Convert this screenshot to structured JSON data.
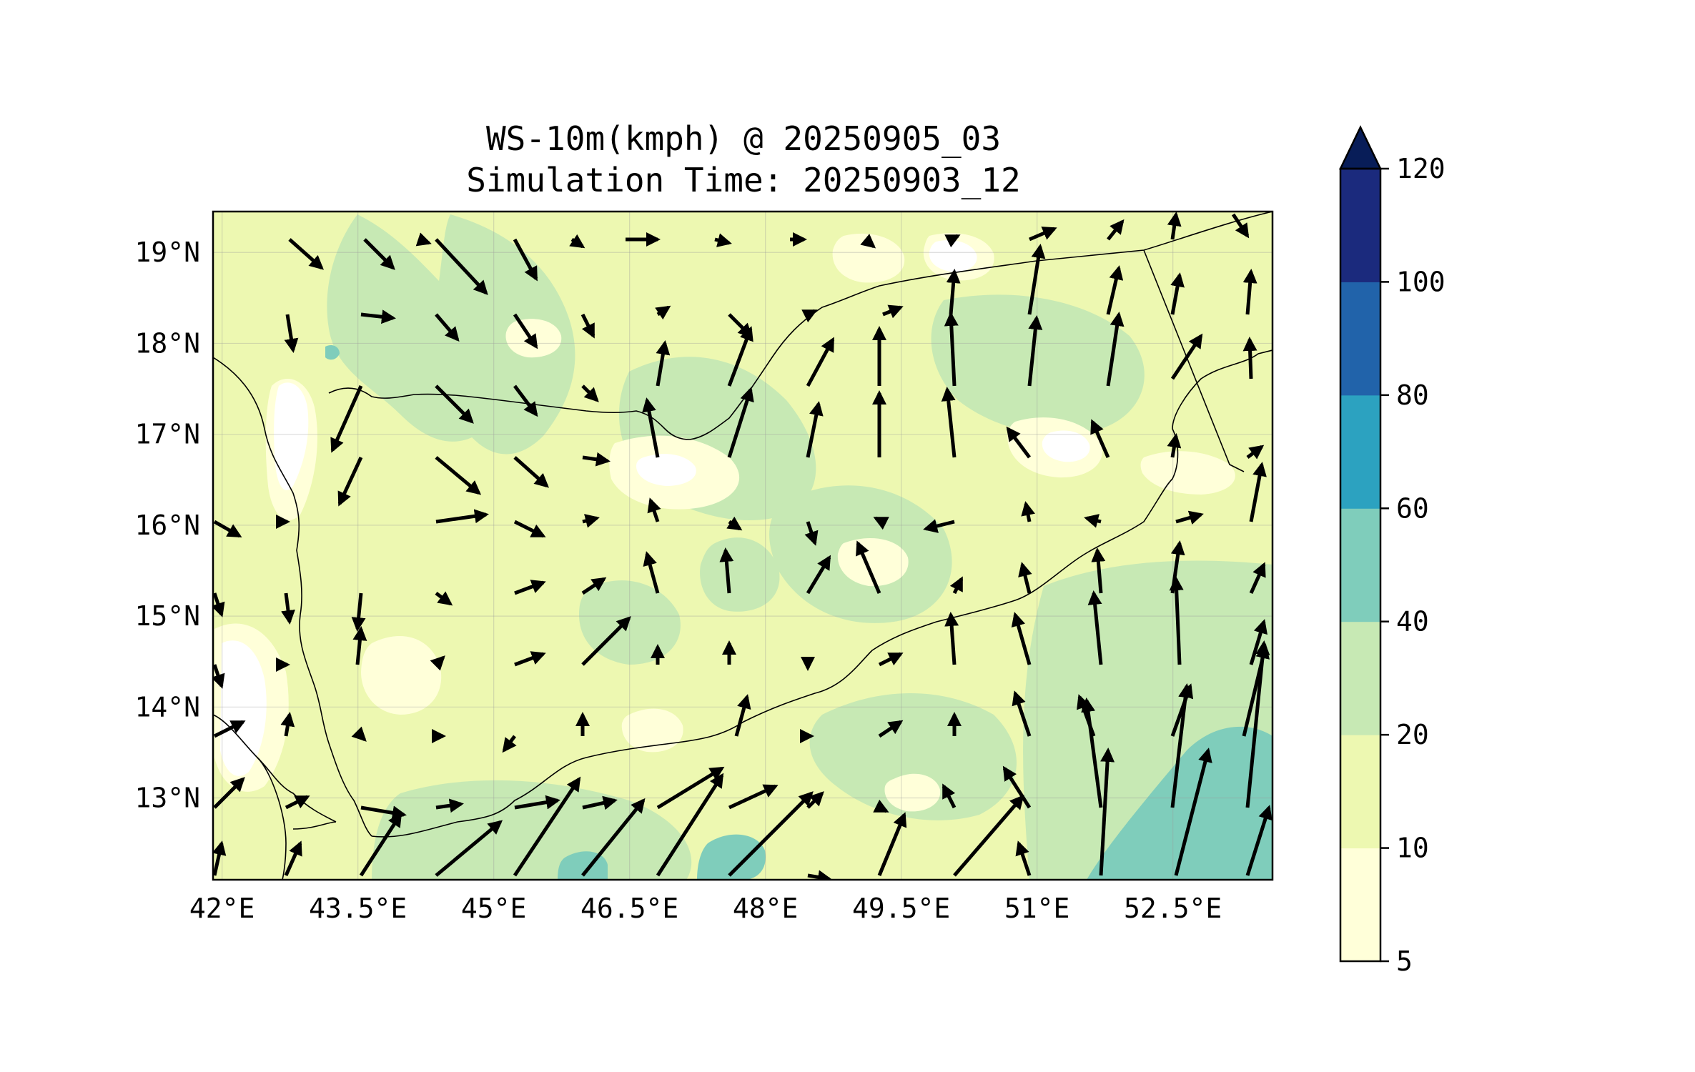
{
  "title_line1": "WS-10m(kmph) @ 20250905_03",
  "title_line2": "Simulation Time: 20250903_12",
  "map": {
    "lon_range": [
      41.9,
      53.6
    ],
    "lat_range": [
      12.1,
      19.45
    ],
    "x_ticks": [
      {
        "value": 42.0,
        "label": "42°E"
      },
      {
        "value": 43.5,
        "label": "43.5°E"
      },
      {
        "value": 45.0,
        "label": "45°E"
      },
      {
        "value": 46.5,
        "label": "46.5°E"
      },
      {
        "value": 48.0,
        "label": "48°E"
      },
      {
        "value": 49.5,
        "label": "49.5°E"
      },
      {
        "value": 51.0,
        "label": "51°E"
      },
      {
        "value": 52.5,
        "label": "52.5°E"
      }
    ],
    "y_ticks": [
      {
        "value": 19,
        "label": "19°N"
      },
      {
        "value": 18,
        "label": "18°N"
      },
      {
        "value": 17,
        "label": "17°N"
      },
      {
        "value": 16,
        "label": "16°N"
      },
      {
        "value": 15,
        "label": "15°N"
      },
      {
        "value": 14,
        "label": "14°N"
      },
      {
        "value": 13,
        "label": "13°N"
      }
    ],
    "gridlines": true,
    "wind_vector_color": "#000000",
    "coastline_color": "#000000"
  },
  "colorbar": {
    "levels": [
      5,
      10,
      20,
      40,
      60,
      80,
      100,
      120
    ],
    "labels": [
      "5",
      "10",
      "20",
      "40",
      "60",
      "80",
      "100",
      "120"
    ],
    "colors": [
      "#ffffd9",
      "#edf8b1",
      "#c7e9b4",
      "#7fcdbb",
      "#2ca2c0",
      "#2163aa",
      "#1b2a7d"
    ],
    "extend_color": "#081d58",
    "extend": "max"
  }
}
